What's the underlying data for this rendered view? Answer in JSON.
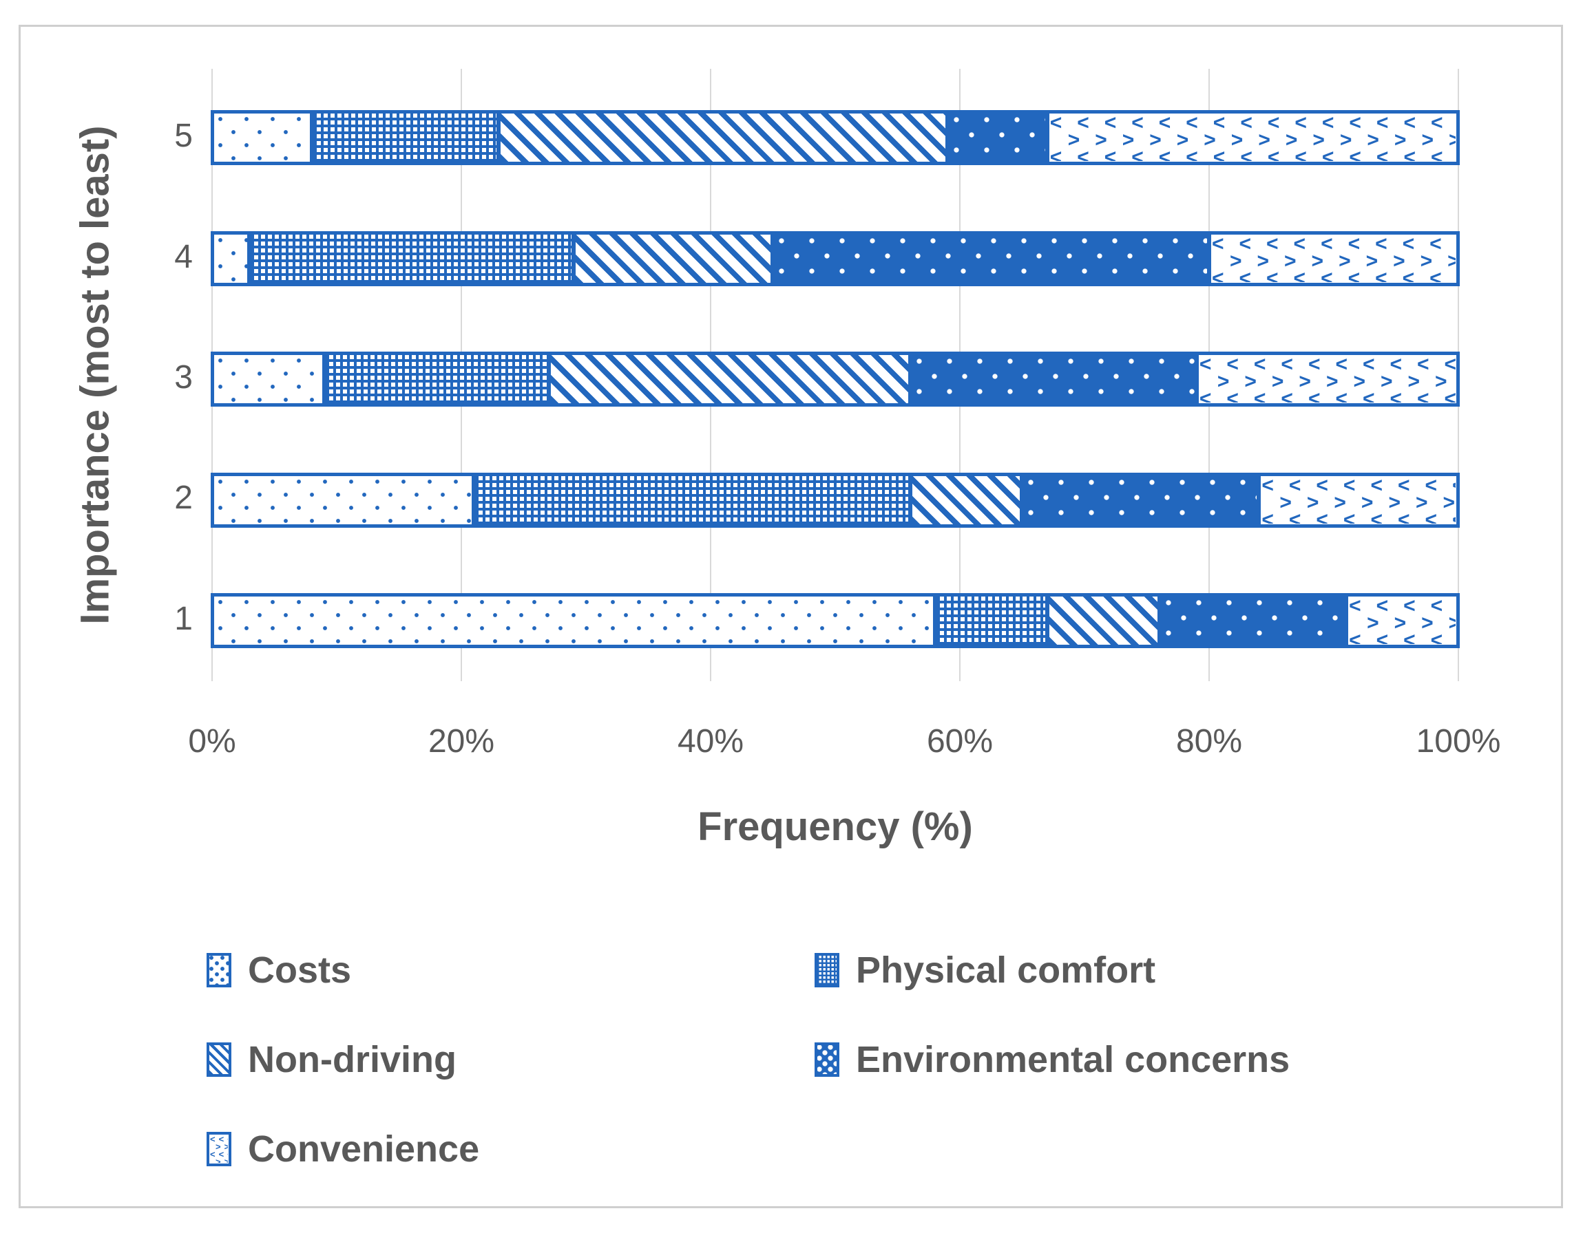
{
  "figure": {
    "background": "#ffffff",
    "border_color": "#cfcfcf"
  },
  "colors": {
    "series_blue": "#2267be",
    "axis_text": "#595959",
    "gridline": "#d9d9d9"
  },
  "chart_data": {
    "type": "bar",
    "orientation": "horizontal",
    "stacked": true,
    "unit": "percent",
    "title": "",
    "xlabel": "Frequency (%)",
    "ylabel": "Importance (most to least)",
    "categories": [
      "5",
      "4",
      "3",
      "2",
      "1"
    ],
    "x_ticks": [
      "0%",
      "20%",
      "40%",
      "60%",
      "80%",
      "100%"
    ],
    "xlim": [
      0,
      100
    ],
    "grid": "vertical-major",
    "legend_position": "bottom",
    "series": [
      {
        "name": "Costs",
        "pattern": "sparse-dots",
        "values": [
          8,
          3,
          9,
          21,
          58
        ]
      },
      {
        "name": "Physical comfort",
        "pattern": "grid-mesh",
        "values": [
          15,
          26,
          18,
          35,
          9
        ]
      },
      {
        "name": "Non-driving",
        "pattern": "diagonal-stripes",
        "values": [
          36,
          16,
          29,
          9,
          9
        ]
      },
      {
        "name": "Environmental concerns",
        "pattern": "solid-white-dots",
        "values": [
          8,
          35,
          23,
          19,
          15
        ]
      },
      {
        "name": "Convenience",
        "pattern": "chevron-brick",
        "values": [
          33,
          20,
          21,
          16,
          9
        ]
      }
    ]
  }
}
